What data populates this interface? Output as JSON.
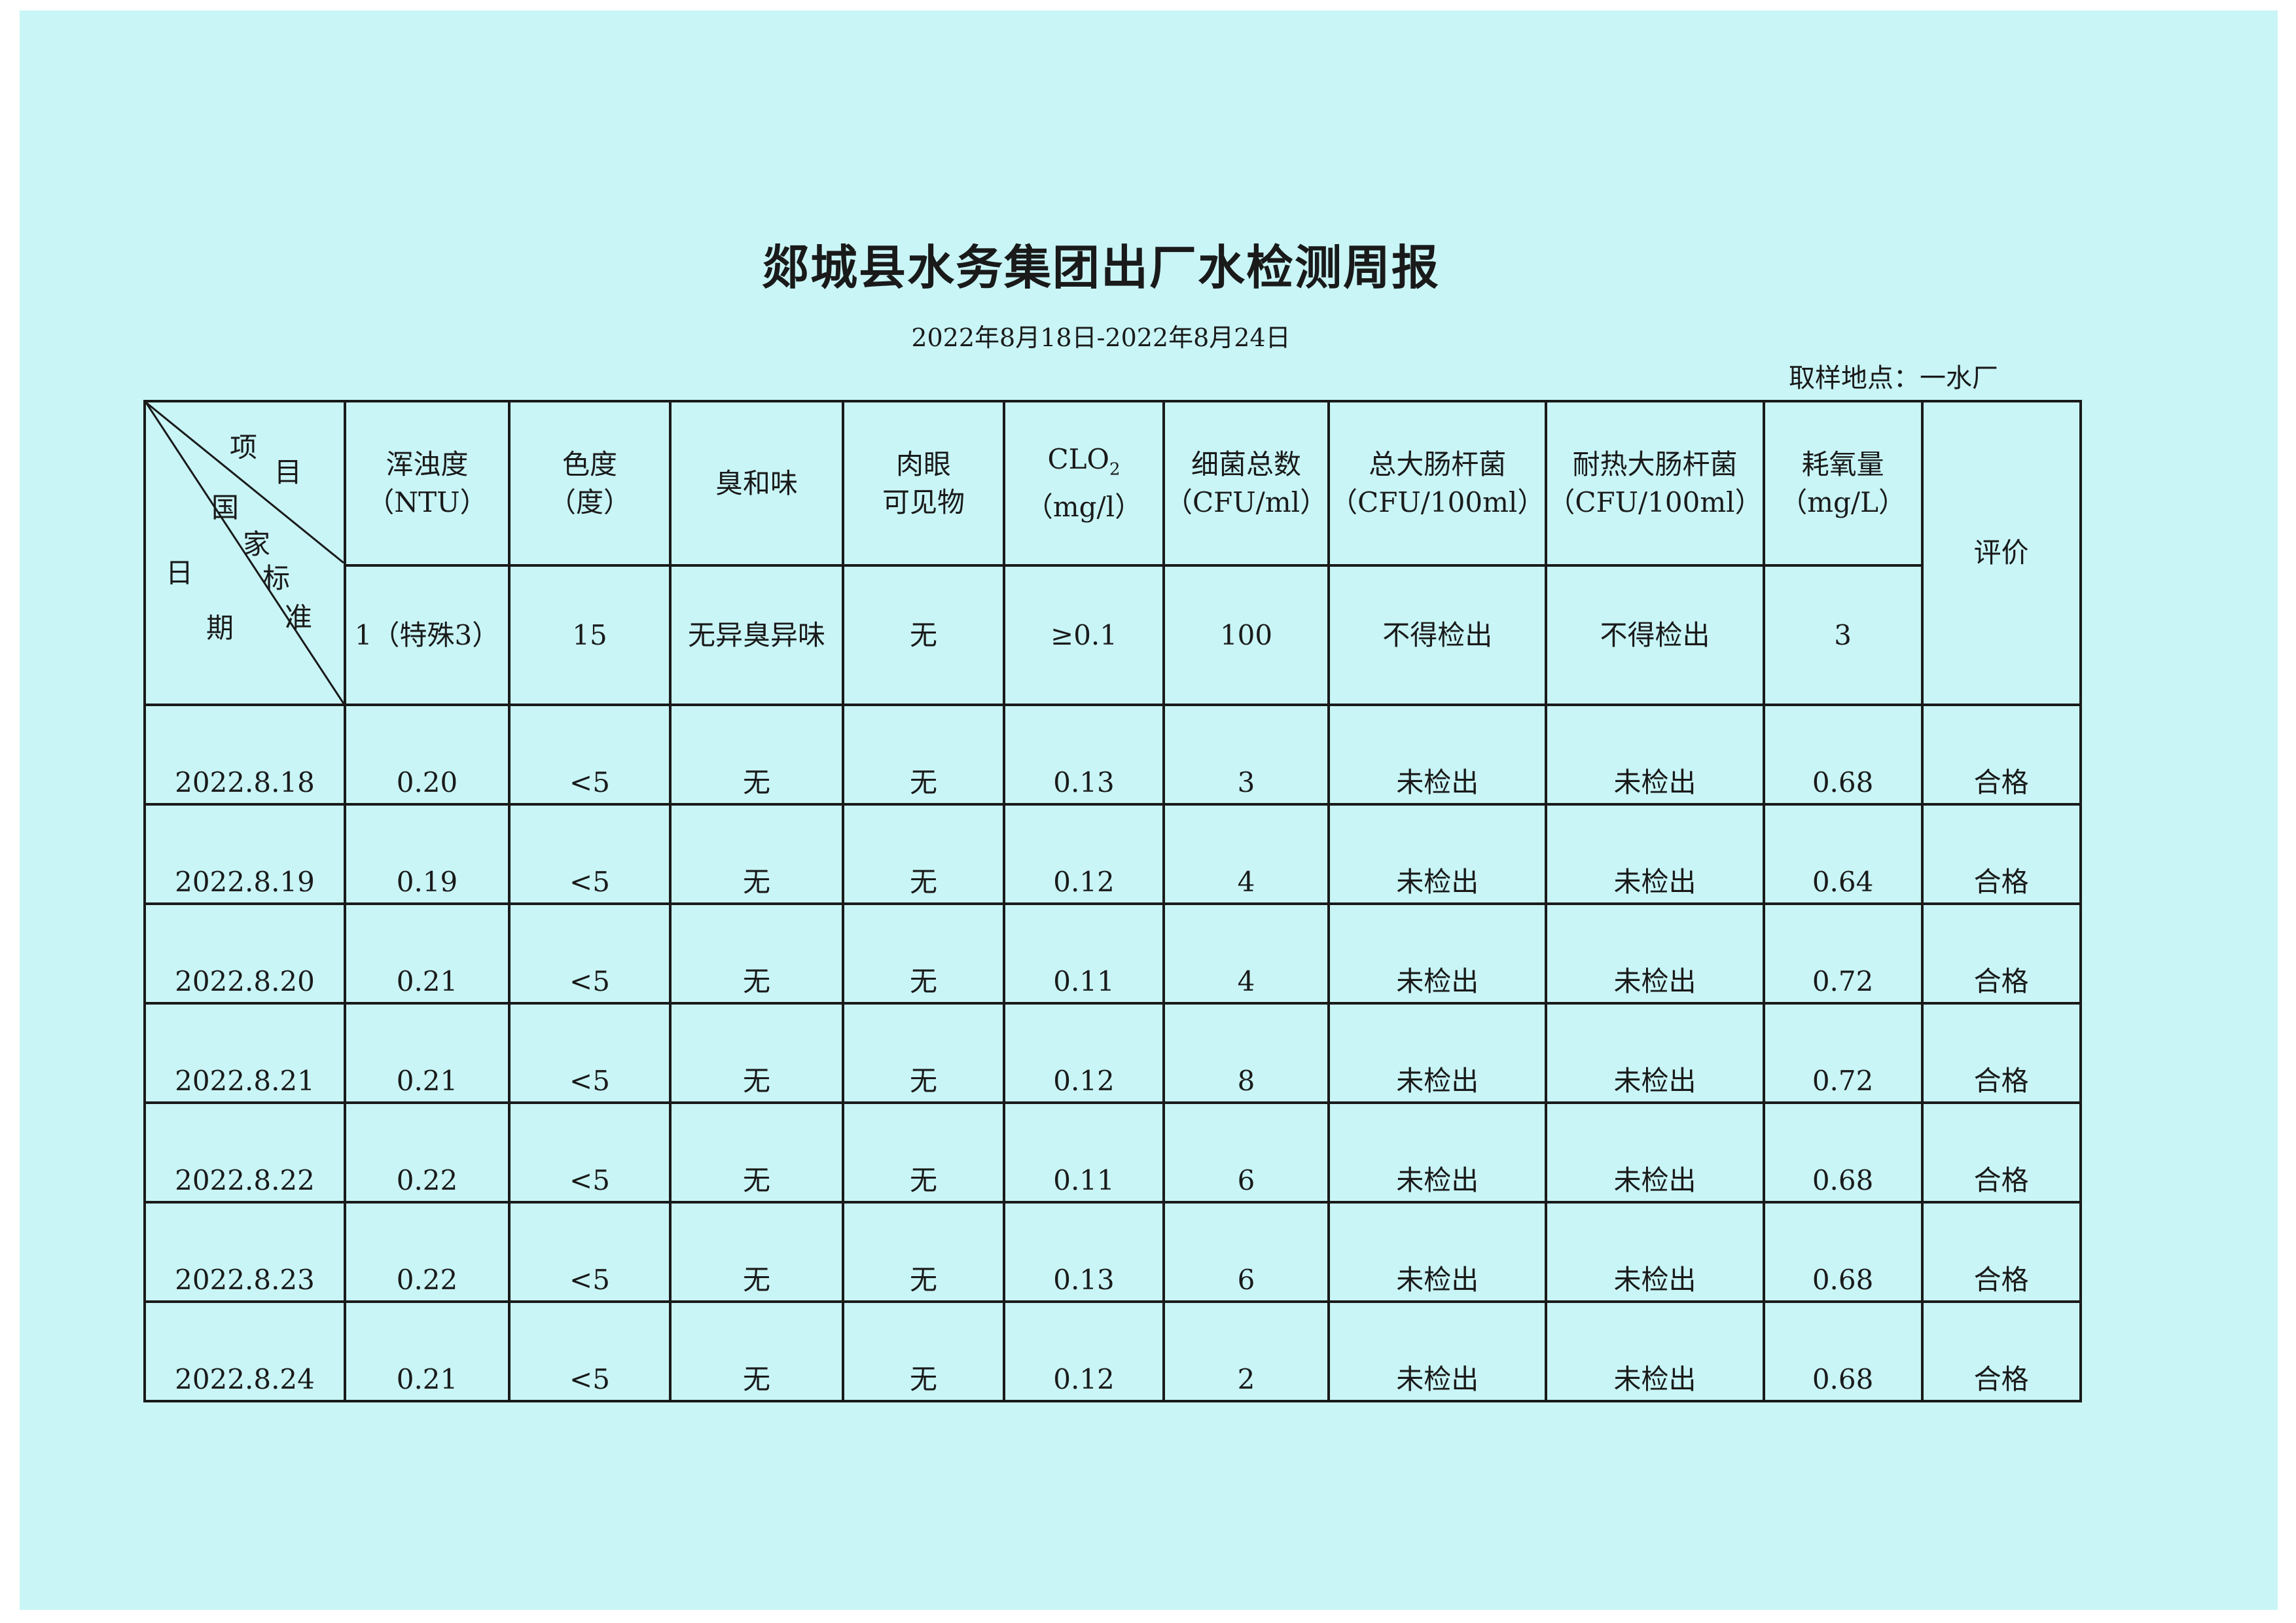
{
  "title": "郯城县水务集团出厂水检测周报",
  "date_range": "2022年8月18日-2022年8月24日",
  "sampling_site": "取样地点：一水厂",
  "corner_header": {
    "item_chars": [
      "项",
      "目"
    ],
    "standard_chars": [
      "国",
      "家",
      "标",
      "准"
    ],
    "date_chars": [
      "日",
      "期"
    ]
  },
  "columns": [
    {
      "name": "浑浊度",
      "unit": "（NTU）",
      "standard": "1（特殊3）"
    },
    {
      "name": "色度",
      "unit": "（度）",
      "standard": "15"
    },
    {
      "name": "臭和味",
      "unit": "",
      "standard": "无异臭异味"
    },
    {
      "name": "肉眼",
      "unit": "可见物",
      "standard": "无"
    },
    {
      "name": "CLO",
      "sub": "2",
      "unit": "（mg/l）",
      "standard": "≥0.1"
    },
    {
      "name": "细菌总数",
      "unit": "（CFU/ml）",
      "standard": "100"
    },
    {
      "name": "总大肠杆菌",
      "unit": "（CFU/100ml）",
      "standard": "不得检出"
    },
    {
      "name": "耐热大肠杆菌",
      "unit": "（CFU/100ml）",
      "standard": "不得检出"
    },
    {
      "name": "耗氧量",
      "unit": "（mg/L）",
      "standard": "3"
    }
  ],
  "evaluation_header": "评价",
  "rows": [
    [
      "2022.8.18",
      "0.20",
      "<5",
      "无",
      "无",
      "0.13",
      "3",
      "未检出",
      "未检出",
      "0.68",
      "合格"
    ],
    [
      "2022.8.19",
      "0.19",
      "<5",
      "无",
      "无",
      "0.12",
      "4",
      "未检出",
      "未检出",
      "0.64",
      "合格"
    ],
    [
      "2022.8.20",
      "0.21",
      "<5",
      "无",
      "无",
      "0.11",
      "4",
      "未检出",
      "未检出",
      "0.72",
      "合格"
    ],
    [
      "2022.8.21",
      "0.21",
      "<5",
      "无",
      "无",
      "0.12",
      "8",
      "未检出",
      "未检出",
      "0.72",
      "合格"
    ],
    [
      "2022.8.22",
      "0.22",
      "<5",
      "无",
      "无",
      "0.11",
      "6",
      "未检出",
      "未检出",
      "0.68",
      "合格"
    ],
    [
      "2022.8.23",
      "0.22",
      "<5",
      "无",
      "无",
      "0.13",
      "6",
      "未检出",
      "未检出",
      "0.68",
      "合格"
    ],
    [
      "2022.8.24",
      "0.21",
      "<5",
      "无",
      "无",
      "0.12",
      "2",
      "未检出",
      "未检出",
      "0.68",
      "合格"
    ]
  ]
}
